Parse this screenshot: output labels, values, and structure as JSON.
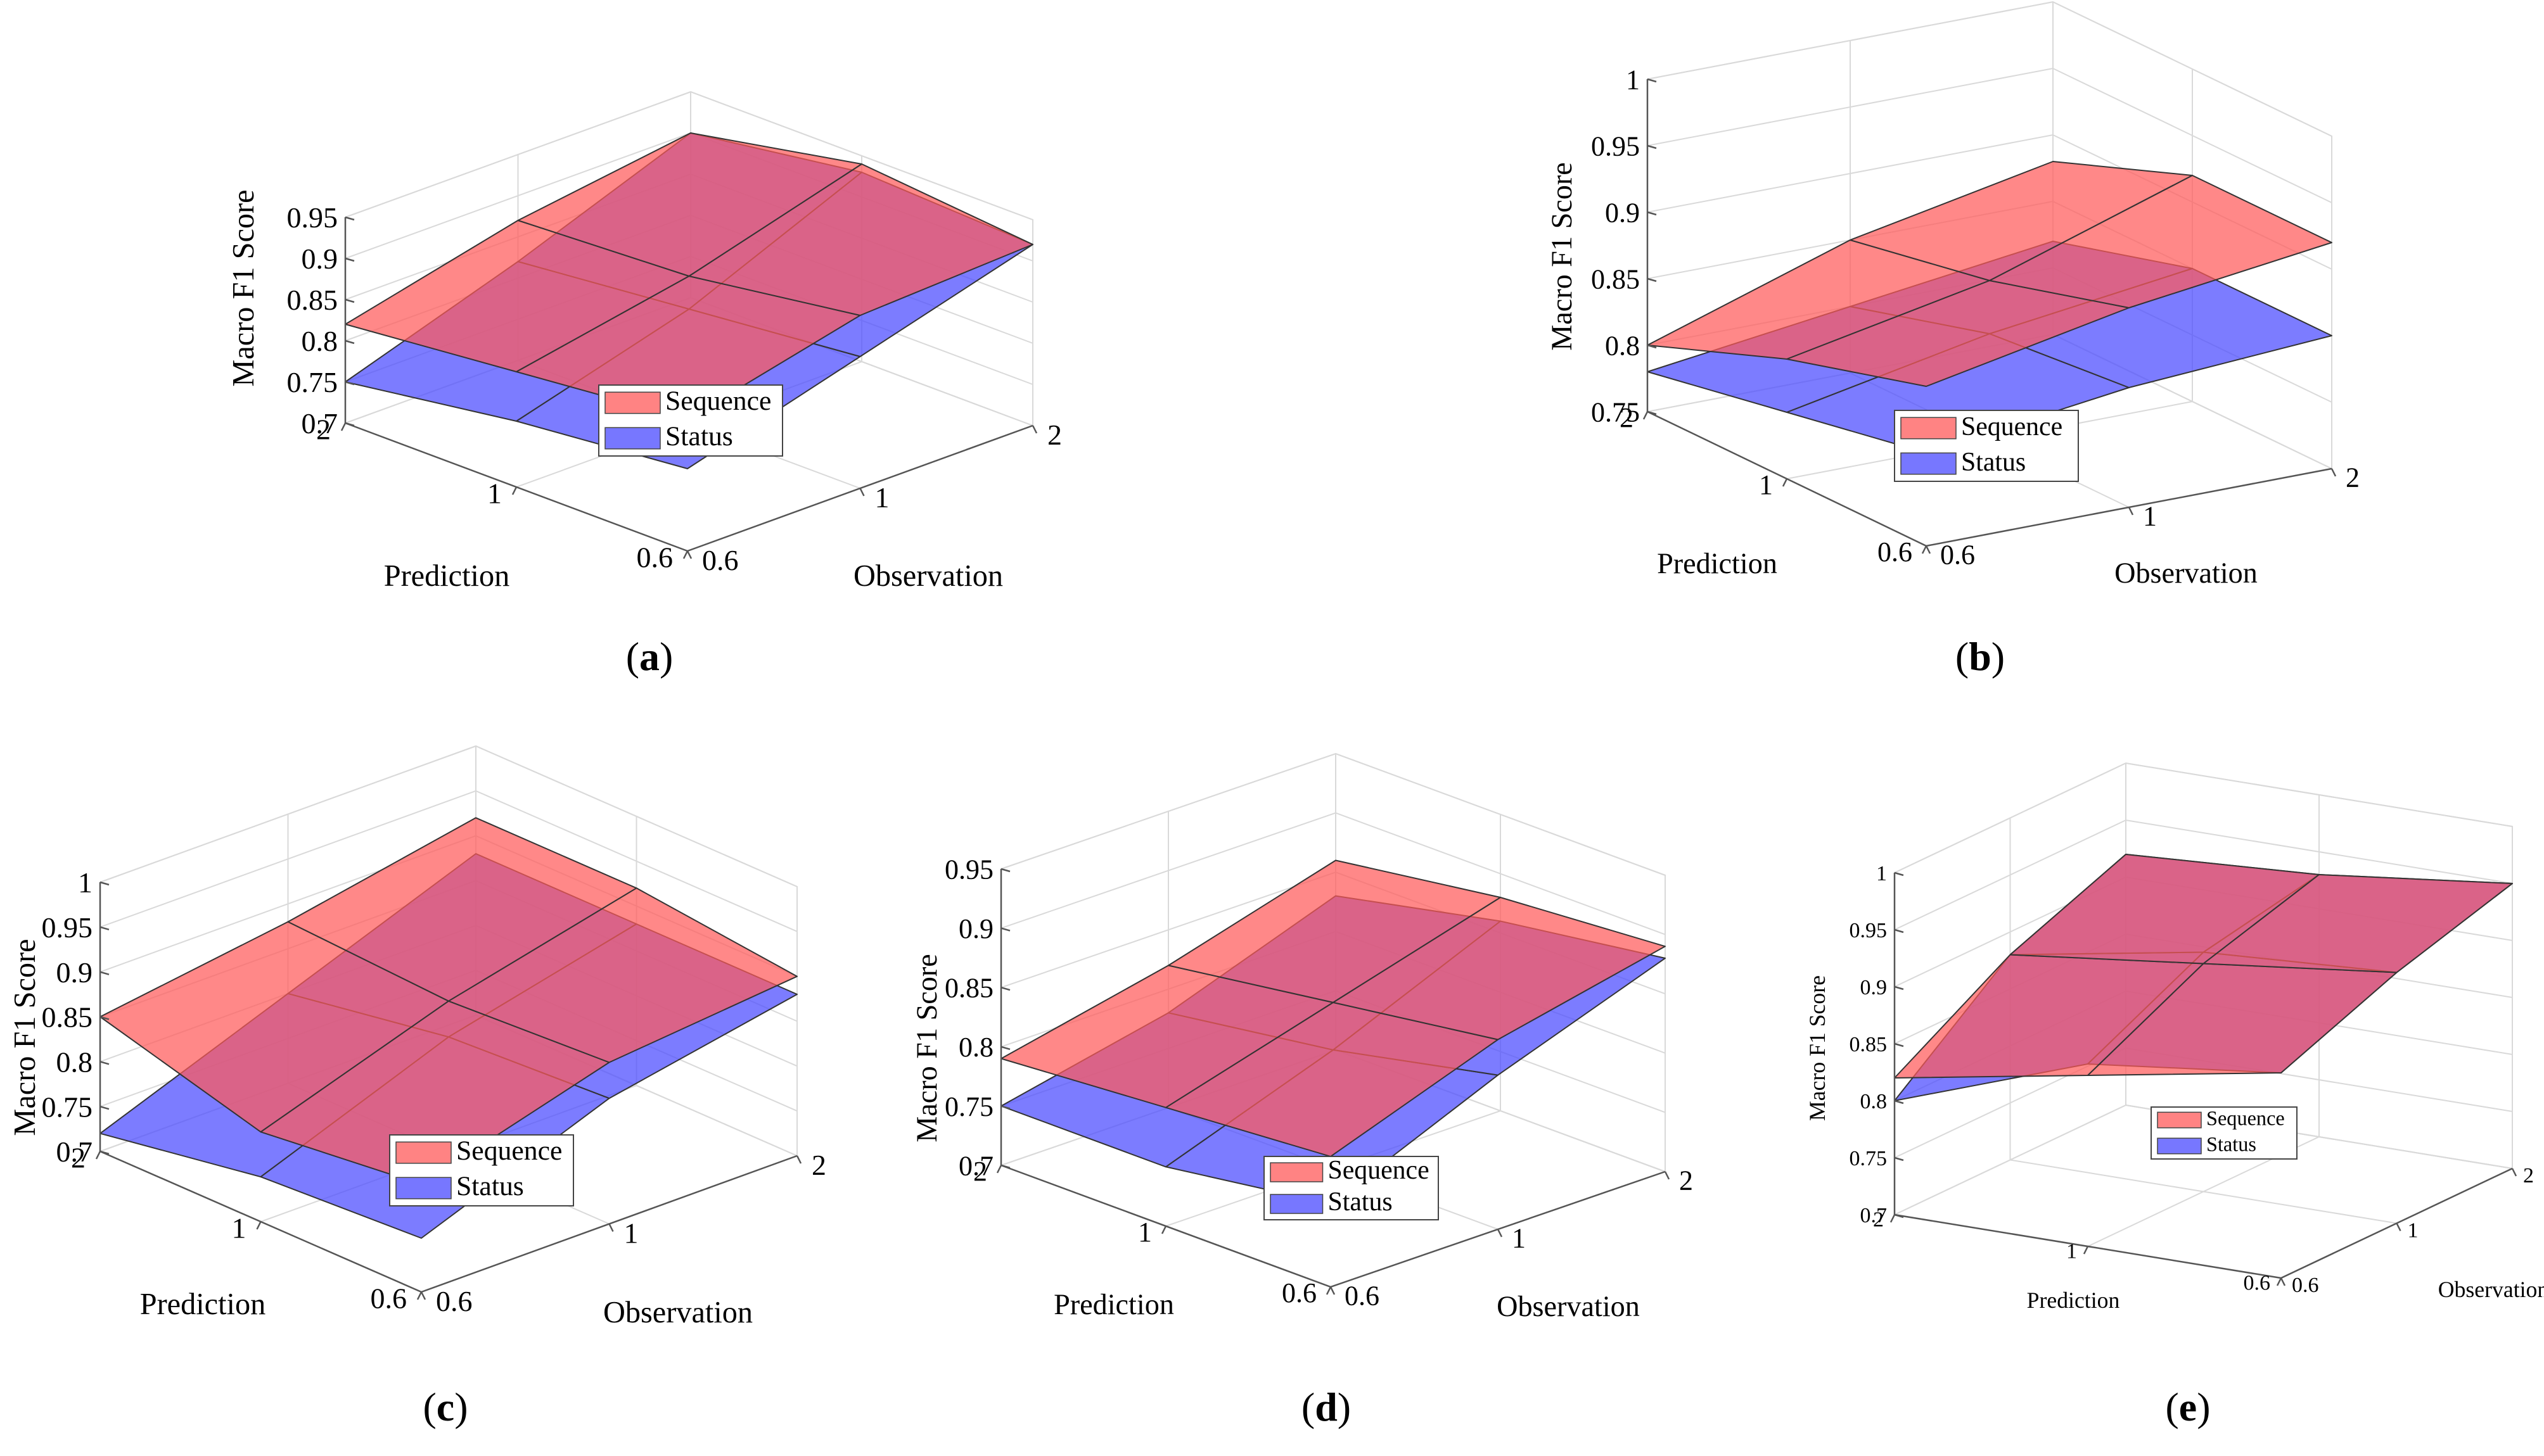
{
  "figure": {
    "series_colors": {
      "Sequence": "#ff5a5a",
      "Status": "#4a4aff"
    },
    "edge_color": "#333333",
    "grid_color": "#d9d9d9"
  },
  "chart_data": [
    {
      "panel": "(a)",
      "panel_letter": "a",
      "type": "surface3d",
      "zlabel": "Macro F1 Score",
      "xlabel": "Prediction",
      "ylabel": "Observation",
      "x_ticks": [
        "2",
        "1",
        "0.6"
      ],
      "y_ticks": [
        "0.6",
        "1",
        "2"
      ],
      "z_ticks": [
        "0.7",
        "0.75",
        "0.8",
        "0.85",
        "0.9",
        "0.95"
      ],
      "zlim": [
        0.7,
        0.95
      ],
      "legend": [
        "Sequence",
        "Status"
      ],
      "series": [
        {
          "name": "Sequence",
          "z": [
            [
              0.82,
              0.87,
              0.9
            ],
            [
              0.84,
              0.88,
              0.94
            ],
            [
              0.86,
              0.91,
              0.92
            ]
          ]
        },
        {
          "name": "Status",
          "z": [
            [
              0.75,
              0.82,
              0.9
            ],
            [
              0.78,
              0.84,
              0.93
            ],
            [
              0.8,
              0.86,
              0.92
            ]
          ]
        }
      ]
    },
    {
      "panel": "(b)",
      "panel_letter": "b",
      "type": "surface3d",
      "zlabel": "Macro F1 Score",
      "xlabel": "Prediction",
      "ylabel": "Observation",
      "x_ticks": [
        "2",
        "1",
        "0.6"
      ],
      "y_ticks": [
        "0.6",
        "1",
        "2"
      ],
      "z_ticks": [
        "0.75",
        "0.8",
        "0.85",
        "0.9",
        "0.95",
        "1"
      ],
      "zlim": [
        0.75,
        1.0
      ],
      "legend": [
        "Sequence",
        "Status"
      ],
      "series": [
        {
          "name": "Sequence",
          "z": [
            [
              0.8,
              0.85,
              0.88
            ],
            [
              0.84,
              0.87,
              0.92
            ],
            [
              0.87,
              0.9,
              0.92
            ]
          ]
        },
        {
          "name": "Status",
          "z": [
            [
              0.78,
              0.8,
              0.82
            ],
            [
              0.8,
              0.83,
              0.85
            ],
            [
              0.82,
              0.84,
              0.85
            ]
          ]
        }
      ]
    },
    {
      "panel": "(c)",
      "panel_letter": "c",
      "type": "surface3d",
      "zlabel": "Macro F1 Score",
      "xlabel": "Prediction",
      "ylabel": "Observation",
      "x_ticks": [
        "2",
        "1",
        "0.6"
      ],
      "y_ticks": [
        "0.6",
        "1",
        "2"
      ],
      "z_ticks": [
        "0.7",
        "0.75",
        "0.8",
        "0.85",
        "0.9",
        "0.95",
        "1"
      ],
      "zlim": [
        0.7,
        1.0
      ],
      "legend": [
        "Sequence",
        "Status"
      ],
      "series": [
        {
          "name": "Sequence",
          "z": [
            [
              0.85,
              0.88,
              0.92
            ],
            [
              0.8,
              0.87,
              0.92
            ],
            [
              0.82,
              0.88,
              0.9
            ]
          ]
        },
        {
          "name": "Status",
          "z": [
            [
              0.72,
              0.8,
              0.88
            ],
            [
              0.75,
              0.83,
              0.88
            ],
            [
              0.76,
              0.84,
              0.88
            ]
          ]
        }
      ]
    },
    {
      "panel": "(d)",
      "panel_letter": "d",
      "type": "surface3d",
      "zlabel": "Macro F1 Score",
      "xlabel": "Prediction",
      "ylabel": "Observation",
      "x_ticks": [
        "2",
        "1",
        "0.6"
      ],
      "y_ticks": [
        "0.6",
        "1",
        "2"
      ],
      "z_ticks": [
        "0.7",
        "0.75",
        "0.8",
        "0.85",
        "0.9",
        "0.95"
      ],
      "zlim": [
        0.7,
        0.95
      ],
      "legend": [
        "Sequence",
        "Status"
      ],
      "series": [
        {
          "name": "Sequence",
          "z": [
            [
              0.79,
              0.82,
              0.86
            ],
            [
              0.8,
              0.84,
              0.88
            ],
            [
              0.81,
              0.86,
              0.89
            ]
          ]
        },
        {
          "name": "Status",
          "z": [
            [
              0.75,
              0.78,
              0.83
            ],
            [
              0.75,
              0.8,
              0.86
            ],
            [
              0.77,
              0.83,
              0.88
            ]
          ]
        }
      ]
    },
    {
      "panel": "(e)",
      "panel_letter": "e",
      "type": "surface3d",
      "zlabel": "Macro F1 Score",
      "xlabel": "Prediction",
      "ylabel": "Observation",
      "x_ticks": [
        "2",
        "1",
        "0.6"
      ],
      "y_ticks": [
        "0.6",
        "1",
        "2"
      ],
      "z_ticks": [
        "0.7",
        "0.75",
        "0.8",
        "0.85",
        "0.9",
        "0.95",
        "1"
      ],
      "zlim": [
        0.7,
        1.0
      ],
      "legend": [
        "Sequence",
        "Status"
      ],
      "series": [
        {
          "name": "Sequence",
          "z": [
            [
              0.82,
              0.88,
              0.92
            ],
            [
              0.85,
              0.9,
              0.93
            ],
            [
              0.88,
              0.92,
              0.95
            ]
          ]
        },
        {
          "name": "Status",
          "z": [
            [
              0.8,
              0.88,
              0.92
            ],
            [
              0.86,
              0.91,
              0.93
            ],
            [
              0.88,
              0.92,
              0.95
            ]
          ]
        }
      ]
    }
  ]
}
